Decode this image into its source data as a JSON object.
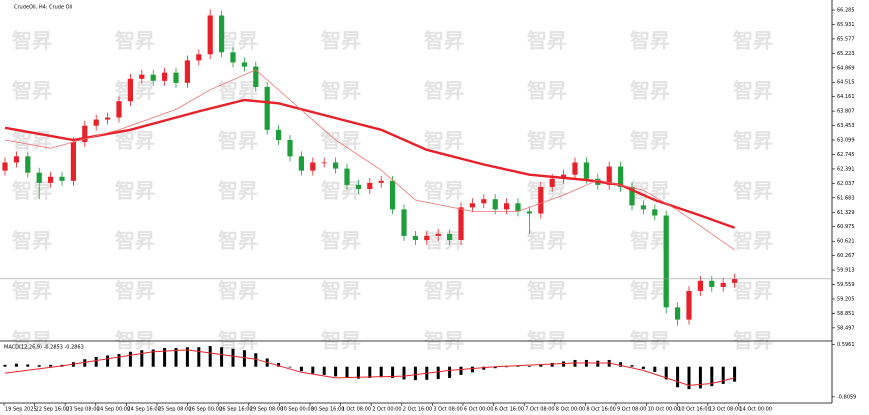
{
  "chart_data": {
    "type": "candlestick",
    "title": "CrudeOil, H4: Crude Oil",
    "up_color": "#e8202a",
    "down_color": "#1e9e3a",
    "candles": {
      "open": [
        62.35,
        62.55,
        62.7,
        62.3,
        62.05,
        62.2,
        62.1,
        63.05,
        63.45,
        63.6,
        63.65,
        64.05,
        64.6,
        64.7,
        64.55,
        64.75,
        64.5,
        65.05,
        65.2,
        66.15,
        65.25,
        65.0,
        64.9,
        64.4,
        63.35,
        63.1,
        62.7,
        62.35,
        62.55,
        62.55,
        62.4,
        62.0,
        61.9,
        62.05,
        62.1,
        61.4,
        60.75,
        60.65,
        60.75,
        60.8,
        60.65,
        61.45,
        61.55,
        61.65,
        61.4,
        61.55,
        61.35,
        61.3,
        61.95,
        62.15,
        62.25,
        62.55,
        62.15,
        62.0,
        62.45,
        61.95,
        61.5,
        61.4,
        61.25,
        59.0,
        58.7,
        59.4,
        59.65,
        59.5,
        59.6
      ],
      "high": [
        62.67,
        62.82,
        62.82,
        62.42,
        62.32,
        62.32,
        63.17,
        63.57,
        63.72,
        63.77,
        64.17,
        64.72,
        64.82,
        64.82,
        64.87,
        64.87,
        65.17,
        65.32,
        66.3,
        66.27,
        65.37,
        65.12,
        65.02,
        64.52,
        63.47,
        63.22,
        62.82,
        62.67,
        62.67,
        62.67,
        62.52,
        62.12,
        62.17,
        62.22,
        62.22,
        61.52,
        60.87,
        60.87,
        60.92,
        60.92,
        61.57,
        61.67,
        61.77,
        61.77,
        61.67,
        61.67,
        61.47,
        62.07,
        62.27,
        62.37,
        62.67,
        62.67,
        62.27,
        62.57,
        62.57,
        62.07,
        61.62,
        61.52,
        61.37,
        59.12,
        59.52,
        59.77,
        59.77,
        59.72,
        59.82
      ],
      "low": [
        62.23,
        62.43,
        62.18,
        61.65,
        61.93,
        61.98,
        61.98,
        62.93,
        63.33,
        63.48,
        63.53,
        63.93,
        64.48,
        64.43,
        64.43,
        64.38,
        64.38,
        64.93,
        65.08,
        65.13,
        64.88,
        64.78,
        64.28,
        63.23,
        62.98,
        62.58,
        62.23,
        62.23,
        62.43,
        62.28,
        61.88,
        61.78,
        61.78,
        61.93,
        61.28,
        60.63,
        60.53,
        60.53,
        60.63,
        60.53,
        60.53,
        61.33,
        61.43,
        61.28,
        61.28,
        61.23,
        60.8,
        61.18,
        61.83,
        62.03,
        62.13,
        62.03,
        61.88,
        61.88,
        61.83,
        61.38,
        61.28,
        61.13,
        58.85,
        58.55,
        58.58,
        59.28,
        59.38,
        59.38,
        59.48
      ],
      "close": [
        62.55,
        62.7,
        62.3,
        62.05,
        62.2,
        62.1,
        63.05,
        63.45,
        63.6,
        63.65,
        64.05,
        64.6,
        64.7,
        64.55,
        64.75,
        64.5,
        65.05,
        65.2,
        66.15,
        65.25,
        65.0,
        64.9,
        64.4,
        63.35,
        63.1,
        62.7,
        62.35,
        62.55,
        62.55,
        62.4,
        62.0,
        61.9,
        62.05,
        62.1,
        61.4,
        60.75,
        60.65,
        60.75,
        60.8,
        60.65,
        61.45,
        61.55,
        61.65,
        61.4,
        61.55,
        61.35,
        61.3,
        61.95,
        62.15,
        62.25,
        62.55,
        62.15,
        62.0,
        62.45,
        61.95,
        61.5,
        61.4,
        61.25,
        59.0,
        58.7,
        59.4,
        59.65,
        59.5,
        59.6,
        59.7
      ]
    },
    "ylim": [
      58.2,
      66.53
    ],
    "yticks": [
      58.497,
      58.851,
      59.205,
      59.559,
      59.913,
      60.267,
      60.621,
      60.975,
      61.329,
      61.683,
      62.037,
      62.391,
      62.745,
      63.099,
      63.453,
      63.807,
      64.161,
      64.515,
      64.869,
      65.223,
      65.577,
      65.931,
      66.285
    ],
    "moving_averages": [
      {
        "color": "#e8202a",
        "width": 2.4,
        "x": [
          0,
          6,
          11,
          17,
          21,
          24,
          28,
          33,
          37,
          42,
          46,
          51,
          54,
          57,
          61,
          64
        ],
        "values": [
          63.4,
          63.1,
          63.35,
          63.8,
          64.08,
          64.0,
          63.71,
          63.35,
          62.86,
          62.5,
          62.25,
          62.12,
          62.0,
          61.63,
          61.25,
          60.95
        ]
      },
      {
        "color": "#f07070",
        "width": 0.8,
        "x": [
          0,
          4,
          10,
          15,
          18,
          22,
          25,
          29,
          33,
          36,
          41,
          45,
          49,
          52,
          56,
          59,
          64
        ],
        "values": [
          63.1,
          62.9,
          63.35,
          63.85,
          64.33,
          64.82,
          64.08,
          63.1,
          62.36,
          61.63,
          61.35,
          61.35,
          61.75,
          62.12,
          61.87,
          61.38,
          60.41
        ]
      }
    ],
    "x_labels": [
      "19 Sep 2025",
      "22 Sep 16:00",
      "23 Sep 08:00",
      "24 Sep 00:00",
      "24 Sep 16:00",
      "25 Sep 08:00",
      "26 Sep 00:00",
      "26 Sep 16:00",
      "29 Sep 08:00",
      "30 Sep 00:00",
      "30 Sep 16:00",
      "1 Oct 08:00",
      "2 Oct 00:00",
      "2 Oct 16:00",
      "3 Oct 08:00",
      "6 Oct 00:00",
      "6 Oct 16:00",
      "7 Oct 08:00",
      "8 Oct 00:00",
      "8 Oct 16:00",
      "9 Oct 08:00",
      "10 Oct 00:00",
      "10 Oct 16:00",
      "13 Oct 08:00",
      "14 Oct 00:00"
    ],
    "watermark": "智昇",
    "macd": {
      "title": "MACD(12,26,9) -0.2853 -0.2863",
      "bar_color": "#000000",
      "values": [
        0.05,
        0.08,
        0.06,
        0.04,
        0.05,
        0.05,
        0.12,
        0.2,
        0.26,
        0.3,
        0.34,
        0.4,
        0.44,
        0.46,
        0.5,
        0.5,
        0.52,
        0.52,
        0.55,
        0.52,
        0.48,
        0.44,
        0.36,
        0.22,
        0.1,
        -0.02,
        -0.12,
        -0.18,
        -0.22,
        -0.26,
        -0.3,
        -0.32,
        -0.3,
        -0.28,
        -0.3,
        -0.34,
        -0.36,
        -0.35,
        -0.33,
        -0.3,
        -0.22,
        -0.15,
        -0.08,
        -0.04,
        0.0,
        0.02,
        0.02,
        0.06,
        0.1,
        0.14,
        0.18,
        0.18,
        0.16,
        0.18,
        0.12,
        0.04,
        -0.06,
        -0.14,
        -0.34,
        -0.55,
        -0.6,
        -0.58,
        -0.52,
        -0.46,
        -0.4
      ],
      "signal": {
        "color": "#e8202a",
        "x": [
          0,
          5,
          13,
          16,
          22,
          26,
          29,
          35,
          39,
          43,
          50,
          53,
          56,
          60,
          62,
          64
        ],
        "values": [
          -0.17,
          0.02,
          0.4,
          0.45,
          0.2,
          -0.15,
          -0.3,
          -0.25,
          -0.1,
          0.0,
          0.1,
          0.1,
          -0.1,
          -0.5,
          -0.45,
          -0.3
        ]
      },
      "ylim": [
        -0.89,
        0.66
      ],
      "yticks": [
        -0.8059,
        0.5961
      ]
    }
  }
}
